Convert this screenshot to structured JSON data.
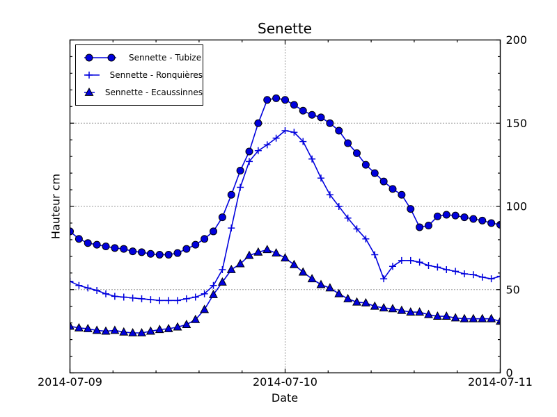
{
  "chart_data": {
    "type": "line",
    "title": "Senette",
    "xlabel": "Date",
    "ylabel": "Hauteur cm",
    "x_start": "2014-07-09 00:00",
    "x_end": "2014-07-11 00:00",
    "x_interval_hours": 1,
    "x_span_hours": 48,
    "ylim": [
      0,
      200
    ],
    "x_major_ticks": [
      {
        "hour": 0,
        "label": "2014-07-09"
      },
      {
        "hour": 24,
        "label": "2014-07-10"
      },
      {
        "hour": 48,
        "label": "2014-07-11"
      }
    ],
    "y_major_ticks": [
      0,
      50,
      100,
      150,
      200
    ],
    "x_minor_tick_hours": 4.8,
    "y_minor_tick_step": 10,
    "grid": {
      "style": "dotted",
      "y_lines": [
        50,
        100,
        150
      ],
      "x_line_hours": [
        24
      ]
    },
    "legend_position": "upper left",
    "marker_edge_color": "#000000",
    "background_color": "#ffffff",
    "series": [
      {
        "name": "Sennette - Tubize",
        "marker": "circle",
        "color": "#0000dd",
        "values": [
          85,
          80.5,
          78,
          77,
          76,
          75,
          74.5,
          73,
          72.5,
          71.5,
          71,
          71,
          72,
          74.5,
          77,
          80.5,
          85,
          93.5,
          107,
          121.5,
          133,
          150,
          164,
          165,
          164,
          161,
          157.5,
          155,
          153.5,
          150,
          145.5,
          138,
          132,
          125,
          120,
          115,
          110.5,
          107,
          98.5,
          87.5,
          88.5,
          94,
          95,
          94.5,
          93.5,
          92.5,
          91.5,
          90,
          89
        ]
      },
      {
        "name": "Sennette - Ronquières",
        "marker": "plus",
        "color": "#0000dd",
        "values": [
          55,
          52.5,
          51,
          49.5,
          47.5,
          46,
          45.5,
          45,
          44.5,
          44,
          43.5,
          43.5,
          43.5,
          44.5,
          45.5,
          47.5,
          52.5,
          62,
          87,
          111.5,
          127,
          133.5,
          137,
          141,
          145.5,
          144.5,
          139,
          128.5,
          117,
          107,
          100,
          93,
          86.5,
          80.5,
          71,
          56.5,
          64,
          67.5,
          67.5,
          66.5,
          64.5,
          63.5,
          62,
          61,
          59.5,
          59,
          57.5,
          56.5,
          58
        ]
      },
      {
        "name": "Sennette - Ecaussinnes",
        "marker": "triangle",
        "color": "#0000dd",
        "values": [
          28,
          27,
          26.5,
          25.5,
          25,
          25.5,
          24.5,
          24,
          24,
          25,
          26,
          26.5,
          27.5,
          29,
          32,
          38,
          47,
          54.5,
          62,
          65.5,
          70.5,
          72.5,
          74,
          72,
          69,
          65,
          60.5,
          56.5,
          53,
          51,
          47.5,
          44.5,
          42.5,
          42,
          40,
          39,
          38.5,
          37.5,
          36.5,
          36.5,
          35,
          34,
          34,
          33,
          32.5,
          32.5,
          32.5,
          32.5,
          31
        ]
      }
    ]
  }
}
